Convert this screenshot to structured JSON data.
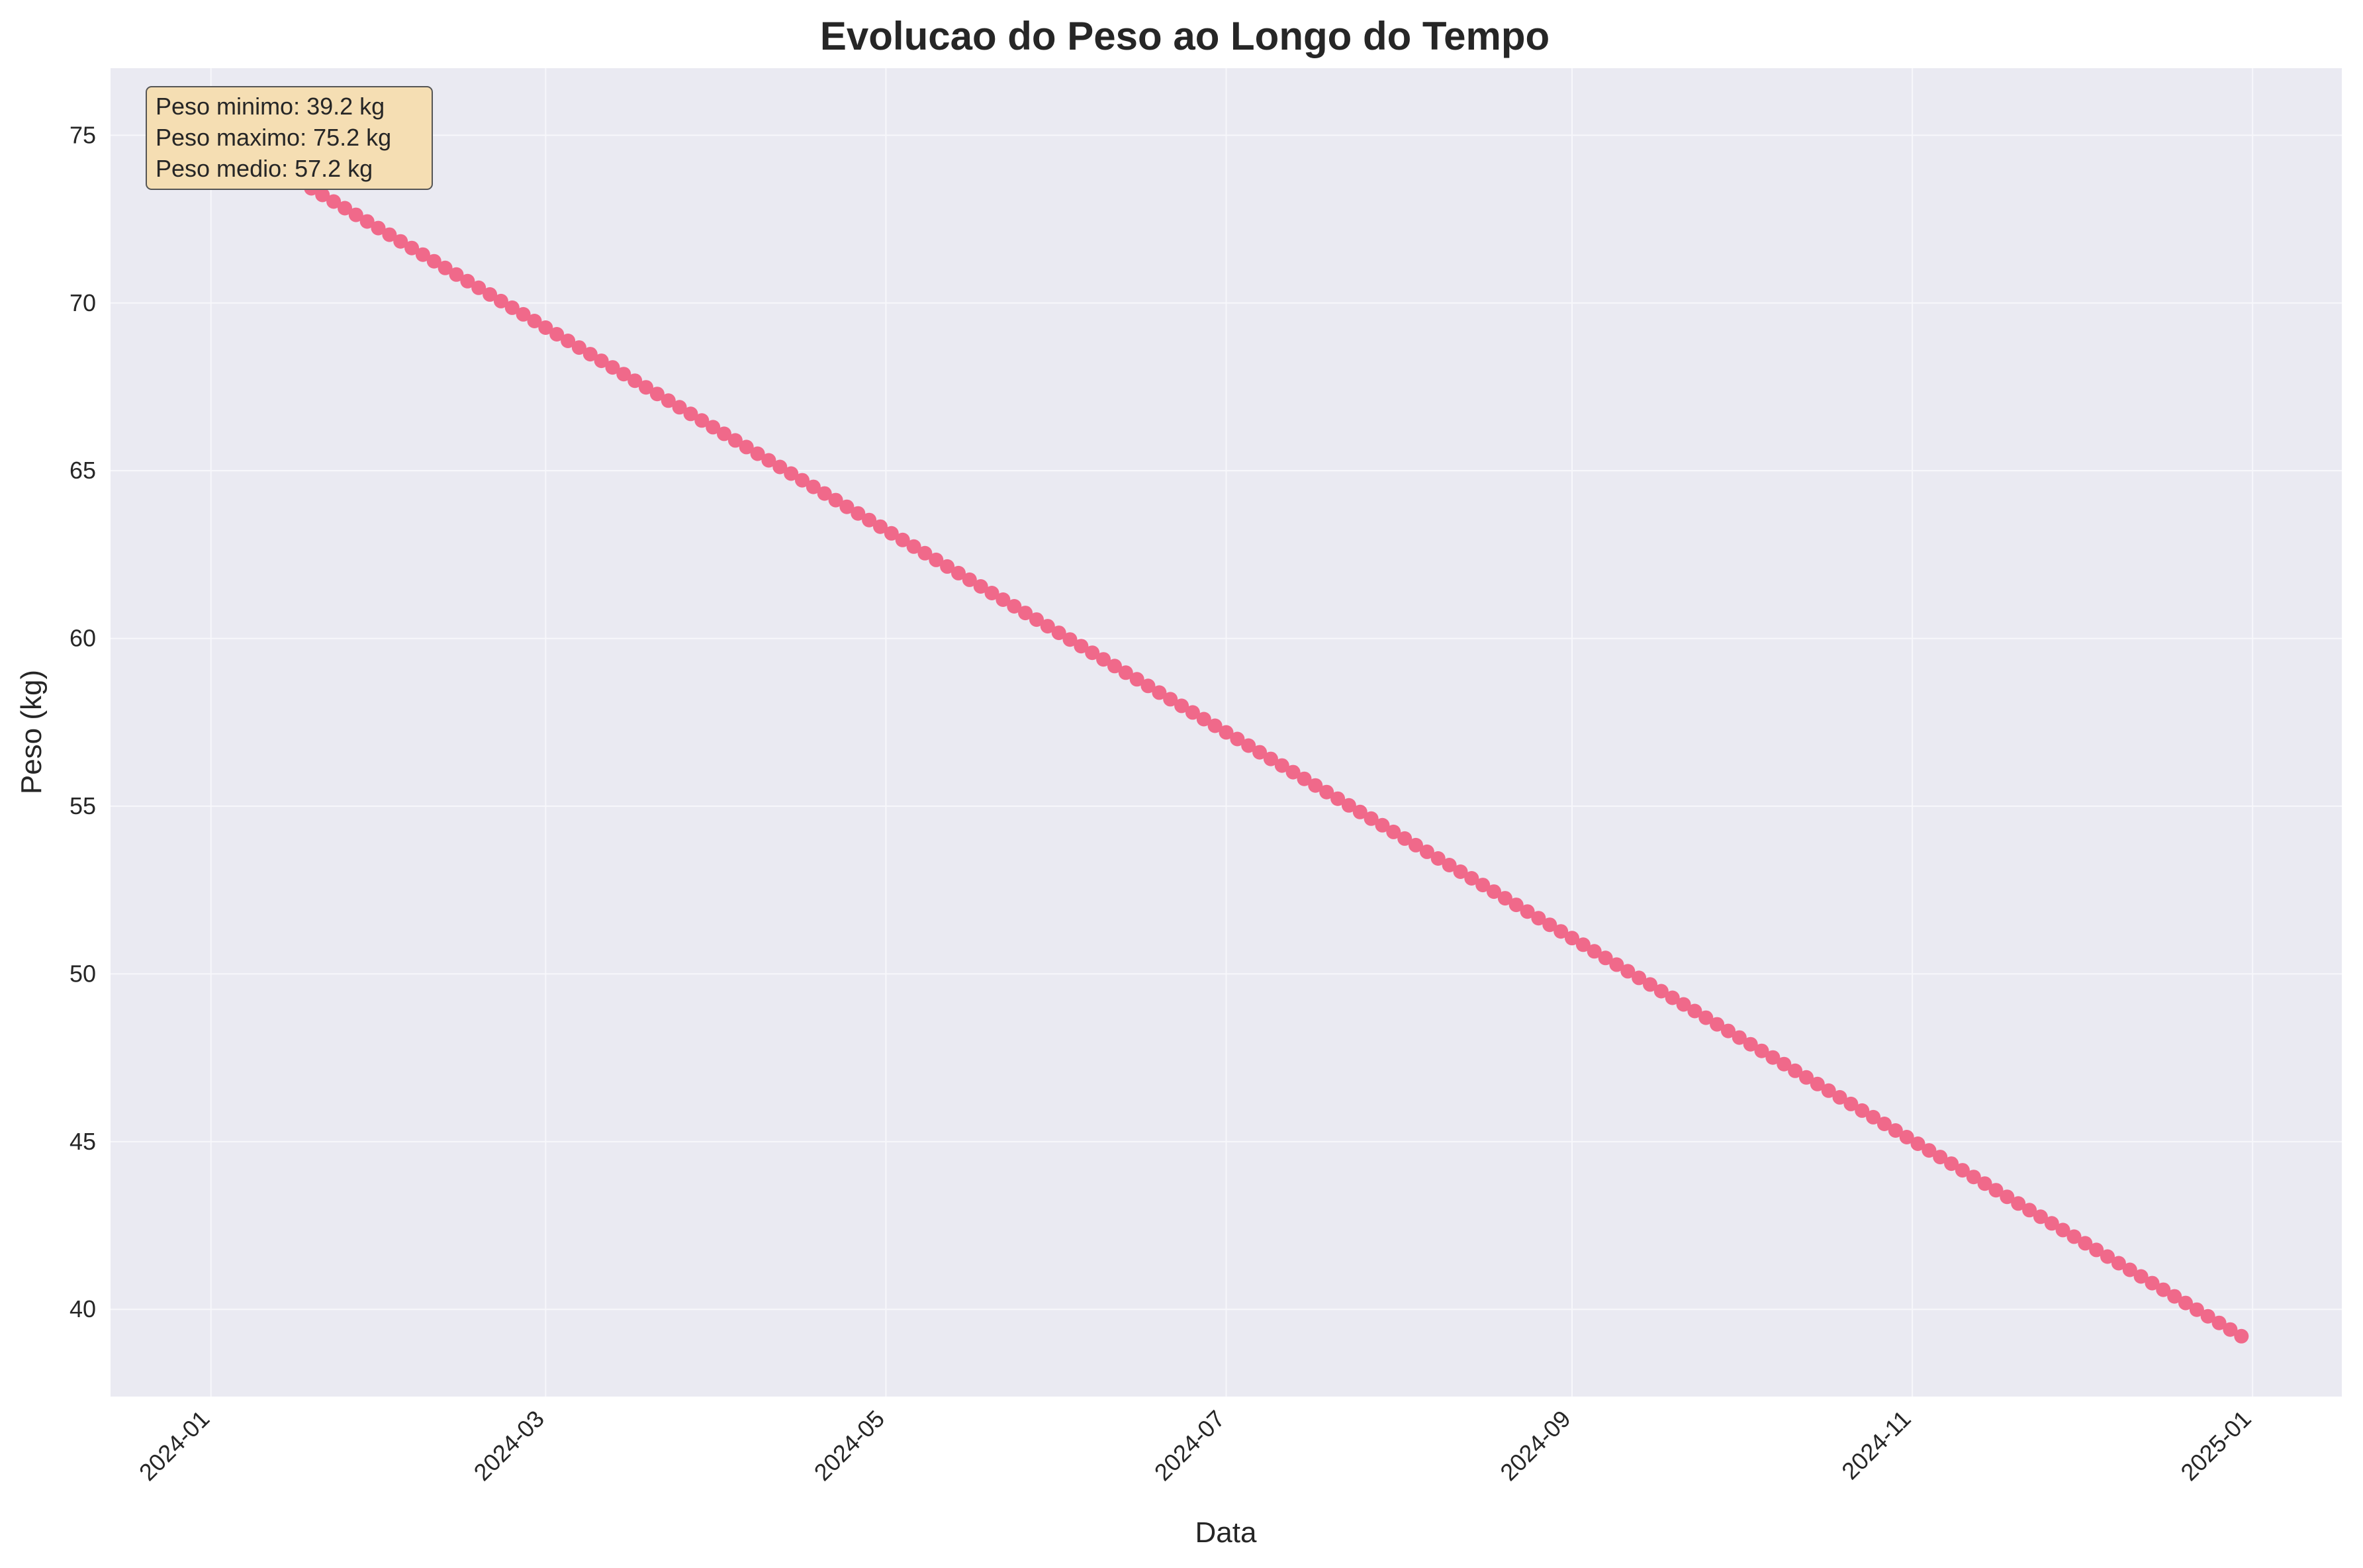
{
  "chart_data": {
    "type": "line",
    "title": "Evolucao do Peso ao Longo do Tempo",
    "xlabel": "Data",
    "ylabel": "Peso (kg)",
    "x_start": "2024-01-01",
    "x_end": "2024-12-31",
    "point_interval_days": 2,
    "y_start": 75.2,
    "y_end": 39.2,
    "xlim": [
      "2023-12-14",
      "2025-01-17"
    ],
    "ylim": [
      37.4,
      77.0
    ],
    "x_ticks": [
      "2024-01",
      "2024-03",
      "2024-05",
      "2024-07",
      "2024-09",
      "2024-11",
      "2025-01"
    ],
    "y_ticks": [
      "40",
      "45",
      "50",
      "55",
      "60",
      "65",
      "70",
      "75"
    ],
    "grid": true,
    "series": [
      {
        "color": "#f0698a",
        "marker": "circle"
      }
    ],
    "info_box": {
      "lines": [
        "Peso minimo: 39.2 kg",
        "Peso maximo: 75.2 kg",
        "Peso medio: 57.2 kg"
      ],
      "position": "top-left"
    },
    "colors": {
      "plot_background": "#eaeaf2",
      "grid": "#f7f7fb",
      "info_box_fill": "#f5deb3",
      "info_box_border": "#555555"
    }
  }
}
